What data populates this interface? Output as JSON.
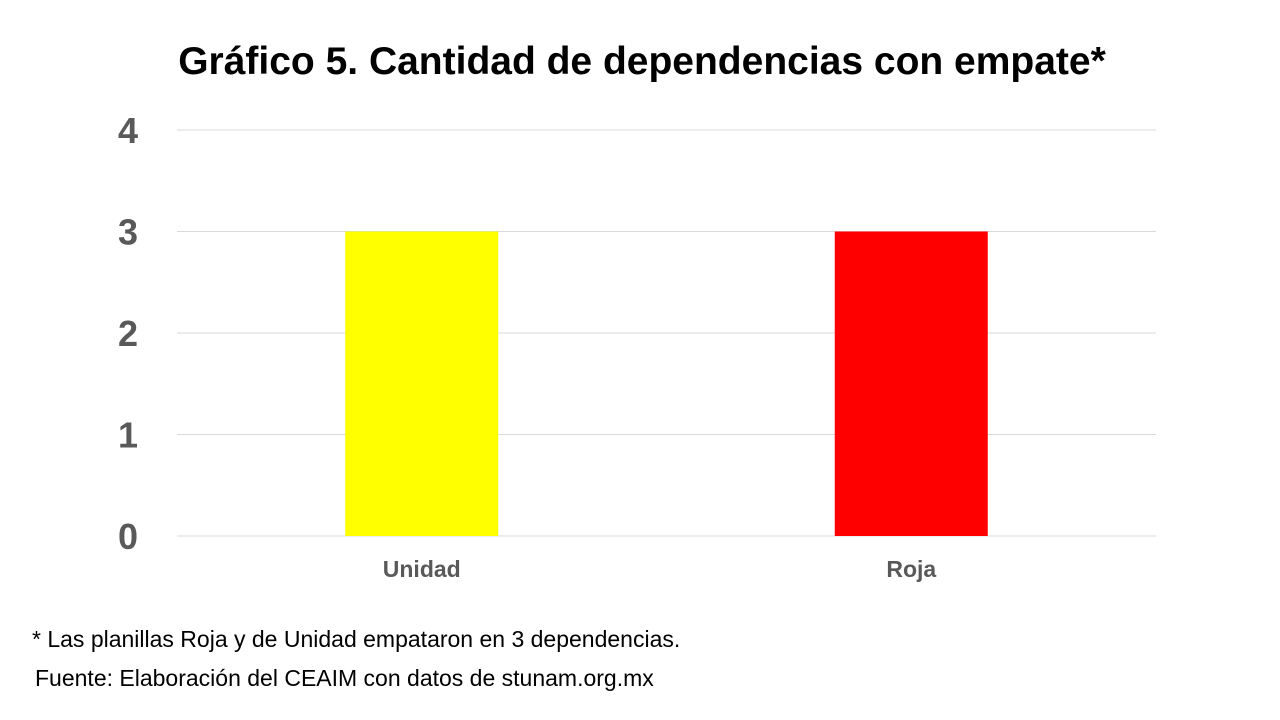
{
  "chart_data": {
    "type": "bar",
    "title": "Gráfico 5. Cantidad de dependencias con empate*",
    "categories": [
      "Unidad",
      "Roja"
    ],
    "values": [
      3,
      3
    ],
    "colors": [
      "#ffff00",
      "#ff0000"
    ],
    "ylim": [
      0,
      4
    ],
    "yticks": [
      0,
      1,
      2,
      3,
      4
    ],
    "xlabel": "",
    "ylabel": "",
    "grid": true,
    "legend": "none"
  },
  "notes": {
    "footnote": "* Las planillas Roja y de Unidad empataron en 3 dependencias.",
    "source": "Fuente: Elaboración del CEAIM con datos de stunam.org.mx"
  }
}
